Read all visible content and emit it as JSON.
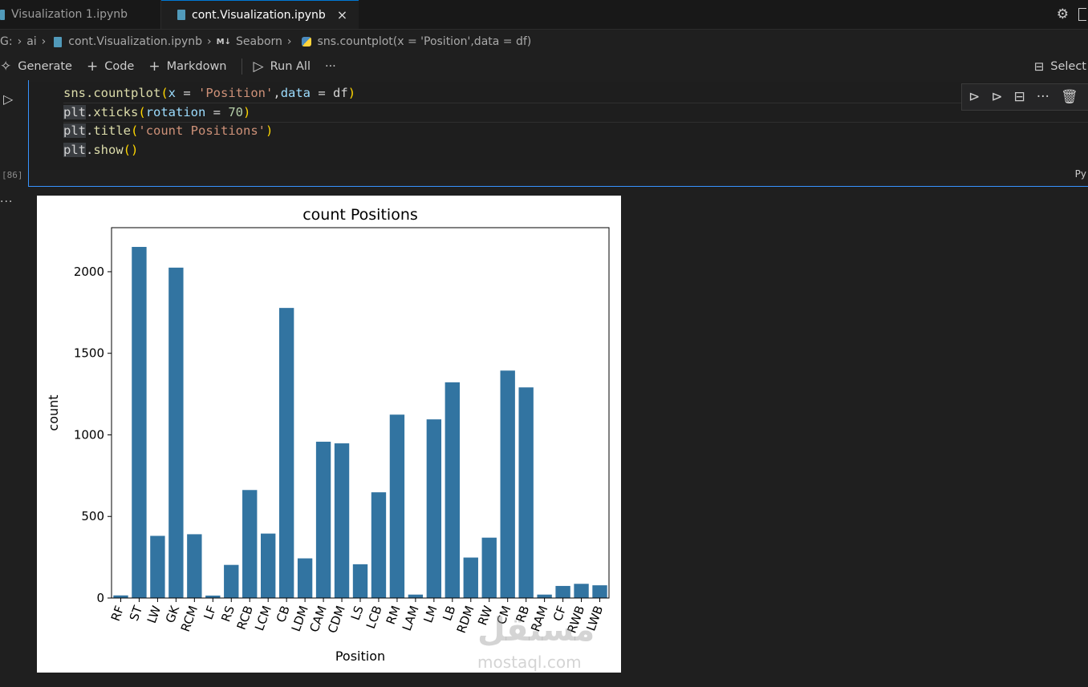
{
  "tabs": [
    {
      "label": "Visualization 1.ipynb",
      "active": false
    },
    {
      "label": "cont.Visualization.ipynb",
      "active": true
    }
  ],
  "tab_close_icon": "×",
  "breadcrumb": {
    "root": "G:",
    "folder": "ai",
    "file": "cont.Visualization.ipynb",
    "md_badge": "M↓",
    "section": "Seaborn",
    "symbol": "sns.countplot(x = 'Position',data = df)"
  },
  "toolbar": {
    "generate": "Generate",
    "code": "Code",
    "markdown": "Markdown",
    "run_all": "Run All",
    "more": "···",
    "select_kernel": "Select"
  },
  "cell": {
    "execution_count": "[86]",
    "language_tag": "Py",
    "output_more": "···"
  },
  "chart_data": {
    "type": "bar",
    "title": "count Positions",
    "xlabel": "Position",
    "ylabel": "count",
    "ylim": [
      0,
      2270
    ],
    "yticks": [
      0,
      500,
      1000,
      1500,
      2000
    ],
    "tick_rotation": 70,
    "bar_color": "#3274a1",
    "categories": [
      "RF",
      "ST",
      "LW",
      "GK",
      "RCM",
      "LF",
      "RS",
      "RCB",
      "LCM",
      "CB",
      "LDM",
      "CAM",
      "CDM",
      "LS",
      "LCB",
      "RM",
      "LAM",
      "LM",
      "LB",
      "RDM",
      "RW",
      "CM",
      "RB",
      "RAM",
      "CF",
      "RWB",
      "LWB"
    ],
    "values": [
      16,
      2152,
      381,
      2025,
      391,
      15,
      203,
      662,
      395,
      1778,
      243,
      958,
      948,
      207,
      648,
      1124,
      21,
      1095,
      1322,
      248,
      370,
      1394,
      1291,
      21,
      74,
      87,
      78
    ]
  },
  "watermark": {
    "arabic": "مستقل",
    "url": "mostaql.com"
  },
  "colors": {
    "accent": "#0078d4",
    "cell_border": "#3794ff",
    "bar": "#3274a1"
  }
}
